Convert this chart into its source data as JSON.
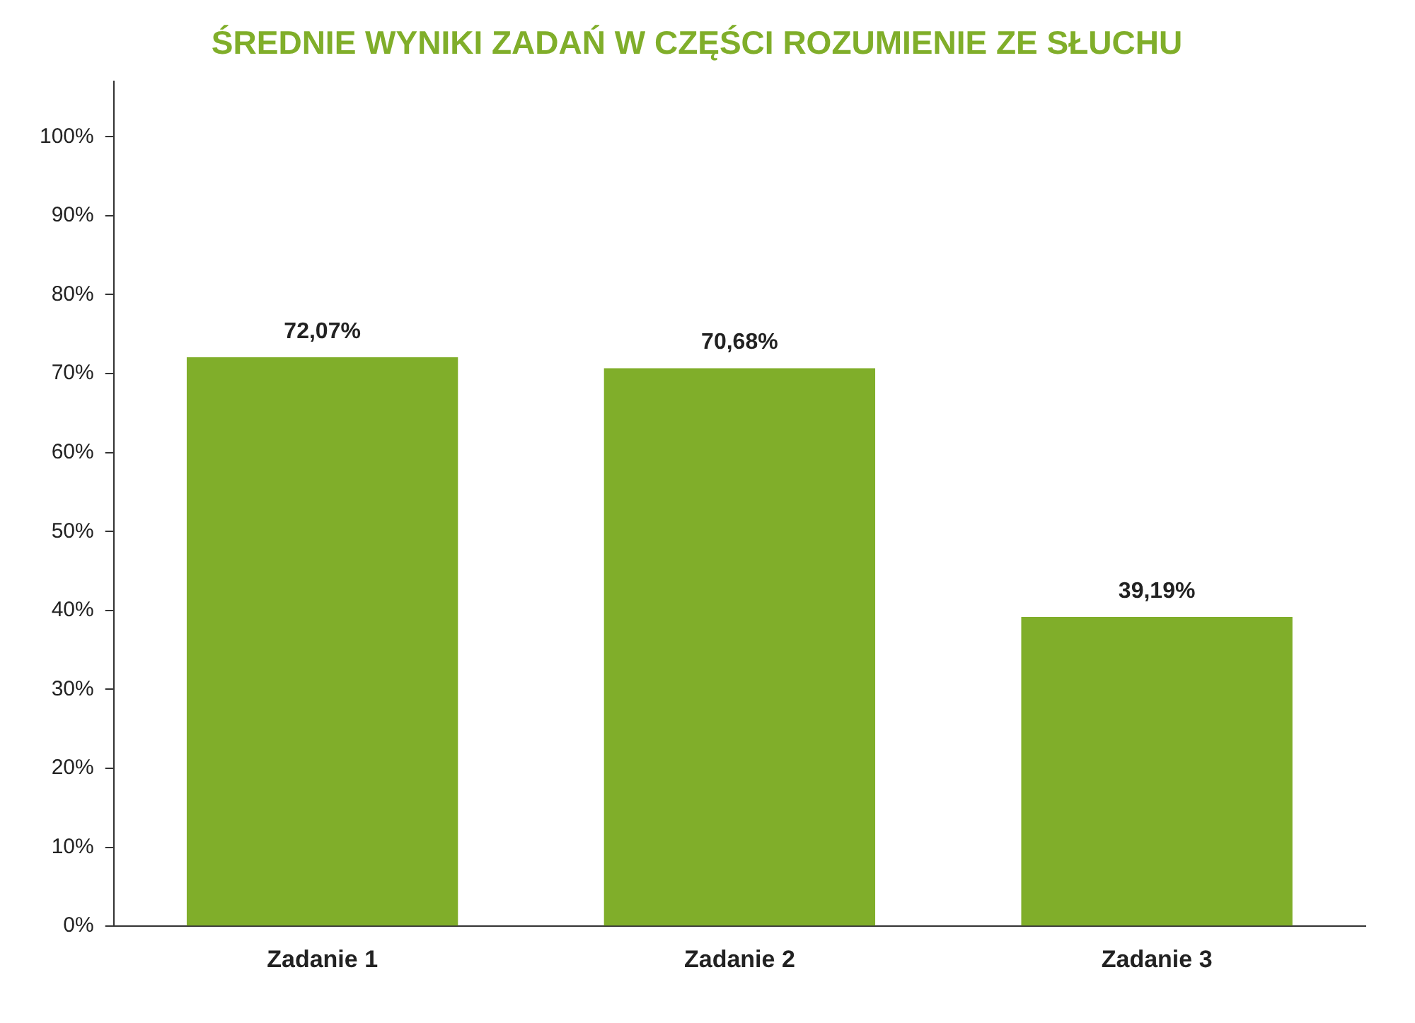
{
  "chart_data": {
    "type": "bar",
    "title": "ŚREDNIE WYNIKI ZADAŃ W CZĘŚCI ROZUMIENIE ZE SŁUCHU",
    "categories": [
      "Zadanie 1",
      "Zadanie 2",
      "Zadanie 3"
    ],
    "values": [
      72.07,
      70.68,
      39.19
    ],
    "color": "#80ae2a",
    "value_labels": [
      "72,07%",
      "70,68%",
      "39,19%"
    ],
    "ylim": [
      0,
      107
    ],
    "yticks": [
      {
        "value": 0,
        "label": "0%"
      },
      {
        "value": 10,
        "label": "10%"
      },
      {
        "value": 20,
        "label": "20%"
      },
      {
        "value": 30,
        "label": "30%"
      },
      {
        "value": 40,
        "label": "40%"
      },
      {
        "value": 50,
        "label": "50%"
      },
      {
        "value": 60,
        "label": "60%"
      },
      {
        "value": 70,
        "label": "70%"
      },
      {
        "value": 80,
        "label": "80%"
      },
      {
        "value": 90,
        "label": "90%"
      },
      {
        "value": 100,
        "label": "100%"
      }
    ],
    "grid": false,
    "legend": false
  }
}
